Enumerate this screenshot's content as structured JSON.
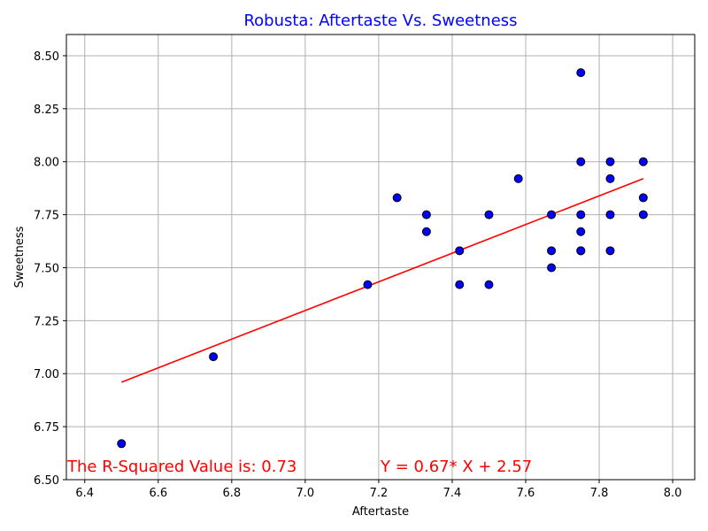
{
  "chart_data": {
    "type": "scatter",
    "title": "Robusta: Aftertaste Vs. Sweetness",
    "xlabel": "Aftertaste",
    "ylabel": "Sweetness",
    "xlim": [
      6.35,
      8.06
    ],
    "ylim": [
      6.5,
      8.6
    ],
    "xticks": [
      6.4,
      6.6,
      6.8,
      7.0,
      7.2,
      7.4,
      7.6,
      7.8,
      8.0
    ],
    "yticks": [
      6.5,
      6.75,
      7.0,
      7.25,
      7.5,
      7.75,
      8.0,
      8.25,
      8.5
    ],
    "xtick_labels": [
      "6.4",
      "6.6",
      "6.8",
      "7.0",
      "7.2",
      "7.4",
      "7.6",
      "7.8",
      "8.0"
    ],
    "ytick_labels": [
      "6.50",
      "6.75",
      "7.00",
      "7.25",
      "7.50",
      "7.75",
      "8.00",
      "8.25",
      "8.50"
    ],
    "grid": true,
    "points": [
      {
        "x": 6.5,
        "y": 6.67
      },
      {
        "x": 6.75,
        "y": 7.08
      },
      {
        "x": 7.17,
        "y": 7.42
      },
      {
        "x": 7.25,
        "y": 7.83
      },
      {
        "x": 7.33,
        "y": 7.75
      },
      {
        "x": 7.33,
        "y": 7.67
      },
      {
        "x": 7.42,
        "y": 7.58
      },
      {
        "x": 7.42,
        "y": 7.42
      },
      {
        "x": 7.5,
        "y": 7.75
      },
      {
        "x": 7.5,
        "y": 7.42
      },
      {
        "x": 7.58,
        "y": 7.92
      },
      {
        "x": 7.67,
        "y": 7.75
      },
      {
        "x": 7.67,
        "y": 7.58
      },
      {
        "x": 7.67,
        "y": 7.5
      },
      {
        "x": 7.75,
        "y": 8.42
      },
      {
        "x": 7.75,
        "y": 8.0
      },
      {
        "x": 7.75,
        "y": 7.75
      },
      {
        "x": 7.75,
        "y": 7.67
      },
      {
        "x": 7.75,
        "y": 7.58
      },
      {
        "x": 7.75,
        "y": 7.58
      },
      {
        "x": 7.83,
        "y": 8.0
      },
      {
        "x": 7.83,
        "y": 7.92
      },
      {
        "x": 7.83,
        "y": 7.75
      },
      {
        "x": 7.83,
        "y": 7.58
      },
      {
        "x": 7.92,
        "y": 8.0
      },
      {
        "x": 7.92,
        "y": 7.83
      },
      {
        "x": 7.92,
        "y": 7.75
      }
    ],
    "regression_line": {
      "x": [
        6.5,
        7.92
      ],
      "y": [
        6.96,
        7.92
      ],
      "color": "#ff0000"
    },
    "annotations": [
      {
        "text": "The R-Squared Value is: 0.73",
        "color": "#ff0000"
      },
      {
        "text": "Y = 0.67* X + 2.57",
        "color": "#ff0000"
      }
    ],
    "colors": {
      "title": "#0000ff",
      "marker_fill": "#0000ff",
      "marker_edge": "#000000",
      "grid": "#b0b0b0",
      "line": "#ff0000"
    }
  }
}
